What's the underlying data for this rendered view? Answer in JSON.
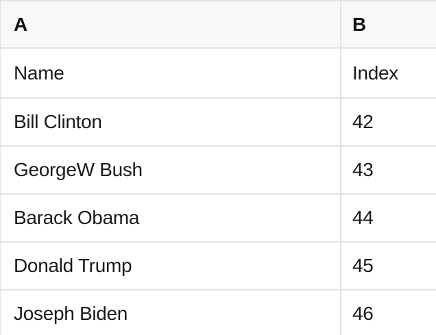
{
  "colors": {
    "header_background": "#f8f8f8",
    "grid_border": "#e2e2e2",
    "body_background": "#ffffff",
    "text": "#1a1a1a"
  },
  "table": {
    "column_headers": [
      {
        "label": "A"
      },
      {
        "label": "B"
      }
    ],
    "rows": [
      {
        "cells": [
          "Name",
          "Index"
        ]
      },
      {
        "cells": [
          "Bill Clinton",
          "42"
        ]
      },
      {
        "cells": [
          "GeorgeW Bush",
          "43"
        ]
      },
      {
        "cells": [
          "Barack Obama",
          "44"
        ]
      },
      {
        "cells": [
          "Donald Trump",
          "45"
        ]
      },
      {
        "cells": [
          "Joseph Biden",
          "46"
        ]
      }
    ]
  }
}
